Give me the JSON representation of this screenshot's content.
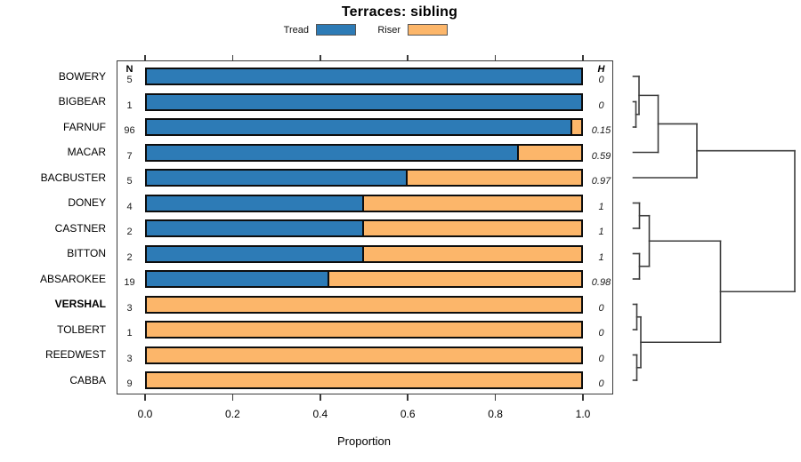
{
  "title": "Terraces: sibling",
  "legend": {
    "items": [
      {
        "label": "Tread",
        "color": "#2D7BB6"
      },
      {
        "label": "Riser",
        "color": "#FCB66A"
      }
    ]
  },
  "columns": {
    "n_header": "N",
    "h_header": "H"
  },
  "axis": {
    "label": "Proportion",
    "ticks": [
      {
        "label": "0.0",
        "value": 0.0
      },
      {
        "label": "0.2",
        "value": 0.2
      },
      {
        "label": "0.4",
        "value": 0.4
      },
      {
        "label": "0.6",
        "value": 0.6
      },
      {
        "label": "0.8",
        "value": 0.8
      },
      {
        "label": "1.0",
        "value": 1.0
      }
    ]
  },
  "colors": {
    "tread": "#2D7BB6",
    "riser": "#FCB66A",
    "bar_border": "#0d0d0d",
    "dendrogram_line": "#3d3d3d"
  },
  "chart_data": {
    "type": "bar",
    "stacked": true,
    "orientation": "horizontal",
    "title": "Terraces: sibling",
    "xlabel": "Proportion",
    "xlim": [
      0,
      1
    ],
    "series_names": [
      "Tread",
      "Riser"
    ],
    "legend_position": "top",
    "grid": false,
    "rows": [
      {
        "label": "BOWERY",
        "n": "5",
        "tread": 1.0,
        "riser": 0.0,
        "h": "0",
        "bold": false
      },
      {
        "label": "BIGBEAR",
        "n": "1",
        "tread": 1.0,
        "riser": 0.0,
        "h": "0",
        "bold": false
      },
      {
        "label": "FARNUF",
        "n": "96",
        "tread": 0.979,
        "riser": 0.021,
        "h": "0.15",
        "bold": false
      },
      {
        "label": "MACAR",
        "n": "7",
        "tread": 0.857,
        "riser": 0.143,
        "h": "0.59",
        "bold": false
      },
      {
        "label": "BACBUSTER",
        "n": "5",
        "tread": 0.6,
        "riser": 0.4,
        "h": "0.97",
        "bold": false
      },
      {
        "label": "DONEY",
        "n": "4",
        "tread": 0.5,
        "riser": 0.5,
        "h": "1",
        "bold": false
      },
      {
        "label": "CASTNER",
        "n": "2",
        "tread": 0.5,
        "riser": 0.5,
        "h": "1",
        "bold": false
      },
      {
        "label": "BITTON",
        "n": "2",
        "tread": 0.5,
        "riser": 0.5,
        "h": "1",
        "bold": false
      },
      {
        "label": "ABSAROKEE",
        "n": "19",
        "tread": 0.421,
        "riser": 0.579,
        "h": "0.98",
        "bold": false
      },
      {
        "label": "VERSHAL",
        "n": "3",
        "tread": 0.0,
        "riser": 1.0,
        "h": "0",
        "bold": true
      },
      {
        "label": "TOLBERT",
        "n": "1",
        "tread": 0.0,
        "riser": 1.0,
        "h": "0",
        "bold": false
      },
      {
        "label": "REEDWEST",
        "n": "3",
        "tread": 0.0,
        "riser": 1.0,
        "h": "0",
        "bold": false
      },
      {
        "label": "CABBA",
        "n": "9",
        "tread": 0.0,
        "riser": 1.0,
        "h": "0",
        "bold": false
      }
    ],
    "dendrogram": {
      "side": "right",
      "leaf_stub_x": 711.5,
      "merges": [
        {
          "id": "T1",
          "a": "BIGBEAR",
          "b": "FARNUF",
          "x": 714.5
        },
        {
          "id": "T2",
          "a": "BOWERY",
          "b": "T1",
          "x": 718.0
        },
        {
          "id": "T3",
          "a": "T2",
          "b": "MACAR",
          "x": 739.5
        },
        {
          "id": "T",
          "a": "T3",
          "b": "BACBUSTER",
          "x": 783.0
        },
        {
          "id": "M1",
          "a": "DONEY",
          "b": "CASTNER",
          "x": 718.5
        },
        {
          "id": "M2",
          "a": "BITTON",
          "b": "ABSAROKEE",
          "x": 718.5
        },
        {
          "id": "M",
          "a": "M1",
          "b": "M2",
          "x": 729.5
        },
        {
          "id": "V1",
          "a": "VERSHAL",
          "b": "TOLBERT",
          "x": 715.5
        },
        {
          "id": "V2",
          "a": "REEDWEST",
          "b": "CABBA",
          "x": 715.5
        },
        {
          "id": "V",
          "a": "V1",
          "b": "V2",
          "x": 720.0
        },
        {
          "id": "MV",
          "a": "M",
          "b": "V",
          "x": 809.5
        },
        {
          "id": "ROOT",
          "a": "T",
          "b": "MV",
          "x": 893.0
        }
      ]
    }
  }
}
